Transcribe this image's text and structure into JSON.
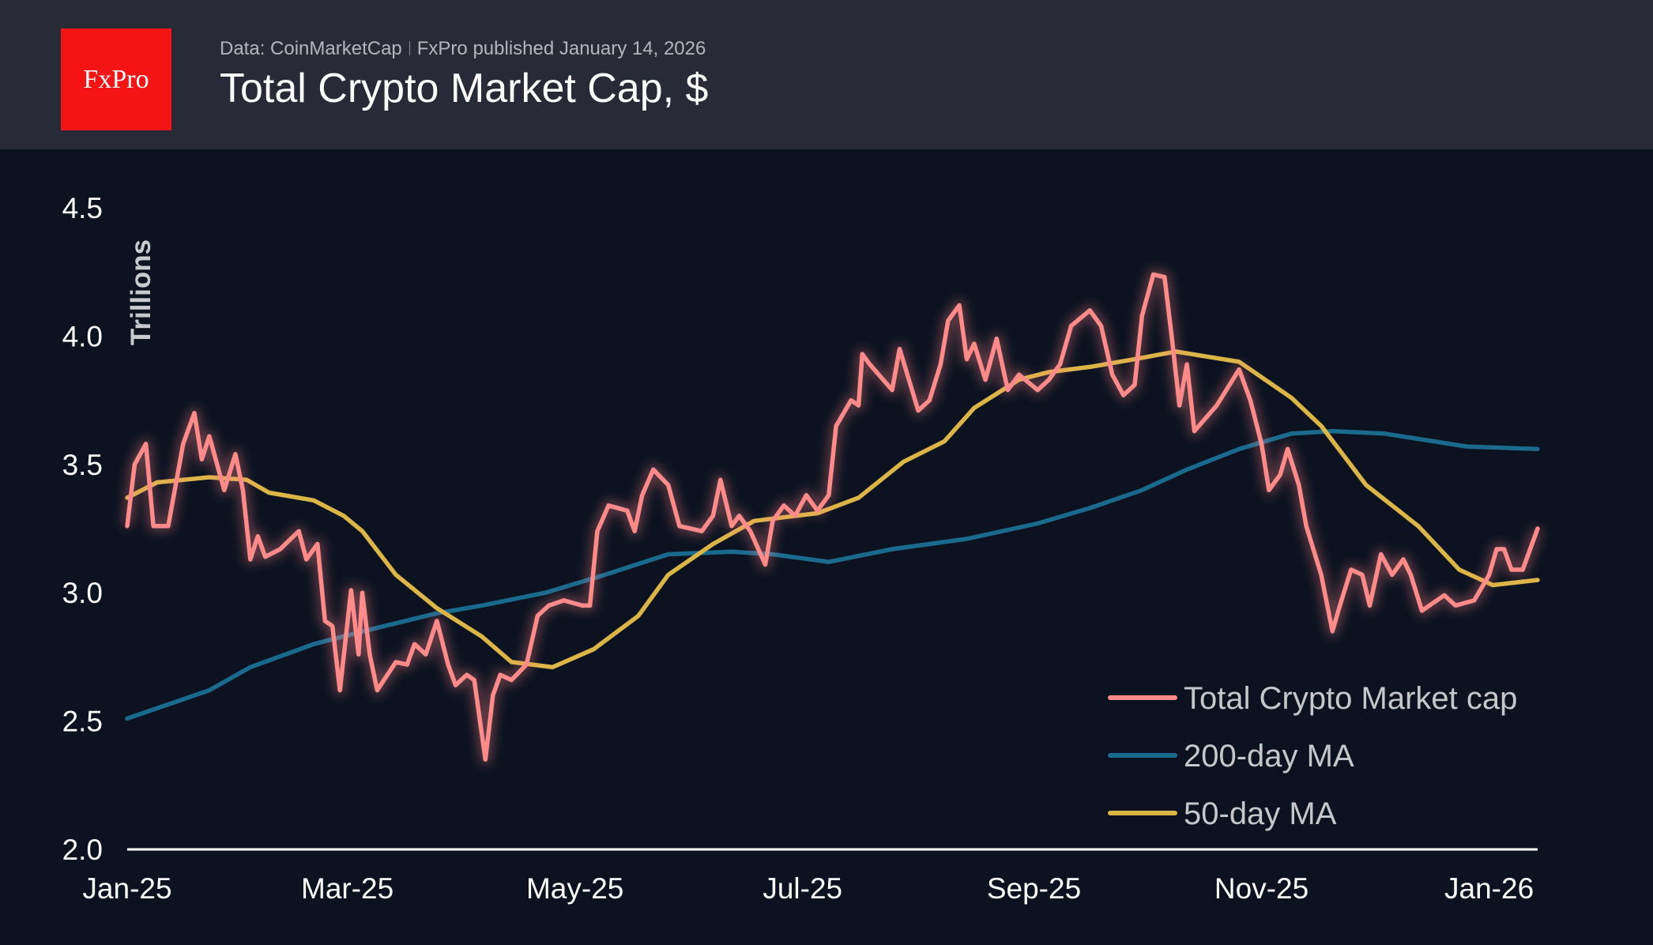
{
  "header": {
    "logo_text": "FxPro",
    "source": "Data: CoinMarketCap",
    "published": "FxPro published January 14, 2026",
    "title": "Total Crypto Market Cap, $"
  },
  "chart_data": {
    "type": "line",
    "title": "Total Crypto Market Cap, $",
    "ylabel": "Trillions",
    "xlabel": "",
    "ylim": [
      2.0,
      4.5
    ],
    "xlim": [
      "2025-01-01",
      "2026-01-14"
    ],
    "yticks": [
      "2.0",
      "2.5",
      "3.0",
      "3.5",
      "4.0",
      "4.5"
    ],
    "xticks": [
      {
        "label": "Jan-25",
        "date": "2025-01-01"
      },
      {
        "label": "Mar-25",
        "date": "2025-03-01"
      },
      {
        "label": "May-25",
        "date": "2025-05-01"
      },
      {
        "label": "Jul-25",
        "date": "2025-07-01"
      },
      {
        "label": "Sep-25",
        "date": "2025-09-01"
      },
      {
        "label": "Nov-25",
        "date": "2025-11-01"
      },
      {
        "label": "Jan-26",
        "date": "2026-01-01"
      }
    ],
    "grid": false,
    "legend_position": "bottom-right",
    "series": [
      {
        "name": "Total Crypto Market cap",
        "color": "#ff8a8a",
        "glow": true,
        "points": [
          [
            "2025-01-01",
            3.26
          ],
          [
            "2025-01-03",
            3.5
          ],
          [
            "2025-01-06",
            3.58
          ],
          [
            "2025-01-08",
            3.26
          ],
          [
            "2025-01-12",
            3.26
          ],
          [
            "2025-01-16",
            3.58
          ],
          [
            "2025-01-19",
            3.7
          ],
          [
            "2025-01-21",
            3.52
          ],
          [
            "2025-01-23",
            3.61
          ],
          [
            "2025-01-27",
            3.4
          ],
          [
            "2025-01-30",
            3.54
          ],
          [
            "2025-02-01",
            3.4
          ],
          [
            "2025-02-03",
            3.13
          ],
          [
            "2025-02-05",
            3.22
          ],
          [
            "2025-02-07",
            3.14
          ],
          [
            "2025-02-11",
            3.17
          ],
          [
            "2025-02-16",
            3.24
          ],
          [
            "2025-02-18",
            3.13
          ],
          [
            "2025-02-21",
            3.19
          ],
          [
            "2025-02-23",
            2.89
          ],
          [
            "2025-02-25",
            2.87
          ],
          [
            "2025-02-27",
            2.62
          ],
          [
            "2025-03-02",
            3.01
          ],
          [
            "2025-03-04",
            2.76
          ],
          [
            "2025-03-05",
            3.0
          ],
          [
            "2025-03-07",
            2.76
          ],
          [
            "2025-03-09",
            2.62
          ],
          [
            "2025-03-14",
            2.73
          ],
          [
            "2025-03-17",
            2.72
          ],
          [
            "2025-03-19",
            2.8
          ],
          [
            "2025-03-22",
            2.76
          ],
          [
            "2025-03-25",
            2.89
          ],
          [
            "2025-03-28",
            2.72
          ],
          [
            "2025-03-30",
            2.64
          ],
          [
            "2025-04-02",
            2.68
          ],
          [
            "2025-04-04",
            2.66
          ],
          [
            "2025-04-07",
            2.35
          ],
          [
            "2025-04-09",
            2.6
          ],
          [
            "2025-04-11",
            2.68
          ],
          [
            "2025-04-14",
            2.66
          ],
          [
            "2025-04-18",
            2.72
          ],
          [
            "2025-04-21",
            2.91
          ],
          [
            "2025-04-24",
            2.95
          ],
          [
            "2025-04-28",
            2.97
          ],
          [
            "2025-05-03",
            2.95
          ],
          [
            "2025-05-05",
            2.95
          ],
          [
            "2025-05-07",
            3.24
          ],
          [
            "2025-05-10",
            3.34
          ],
          [
            "2025-05-15",
            3.32
          ],
          [
            "2025-05-17",
            3.24
          ],
          [
            "2025-05-19",
            3.38
          ],
          [
            "2025-05-22",
            3.48
          ],
          [
            "2025-05-26",
            3.42
          ],
          [
            "2025-05-29",
            3.26
          ],
          [
            "2025-06-04",
            3.24
          ],
          [
            "2025-06-07",
            3.3
          ],
          [
            "2025-06-09",
            3.44
          ],
          [
            "2025-06-12",
            3.26
          ],
          [
            "2025-06-14",
            3.3
          ],
          [
            "2025-06-17",
            3.24
          ],
          [
            "2025-06-21",
            3.11
          ],
          [
            "2025-06-23",
            3.28
          ],
          [
            "2025-06-26",
            3.34
          ],
          [
            "2025-06-29",
            3.3
          ],
          [
            "2025-07-02",
            3.38
          ],
          [
            "2025-07-05",
            3.32
          ],
          [
            "2025-07-08",
            3.38
          ],
          [
            "2025-07-10",
            3.65
          ],
          [
            "2025-07-14",
            3.75
          ],
          [
            "2025-07-16",
            3.73
          ],
          [
            "2025-07-17",
            3.93
          ],
          [
            "2025-07-19",
            3.89
          ],
          [
            "2025-07-25",
            3.79
          ],
          [
            "2025-07-27",
            3.95
          ],
          [
            "2025-08-01",
            3.71
          ],
          [
            "2025-08-04",
            3.75
          ],
          [
            "2025-08-07",
            3.89
          ],
          [
            "2025-08-09",
            4.06
          ],
          [
            "2025-08-12",
            4.12
          ],
          [
            "2025-08-14",
            3.91
          ],
          [
            "2025-08-16",
            3.97
          ],
          [
            "2025-08-19",
            3.83
          ],
          [
            "2025-08-22",
            3.99
          ],
          [
            "2025-08-25",
            3.79
          ],
          [
            "2025-08-28",
            3.85
          ],
          [
            "2025-09-02",
            3.79
          ],
          [
            "2025-09-05",
            3.83
          ],
          [
            "2025-09-08",
            3.89
          ],
          [
            "2025-09-11",
            4.04
          ],
          [
            "2025-09-16",
            4.1
          ],
          [
            "2025-09-19",
            4.04
          ],
          [
            "2025-09-22",
            3.85
          ],
          [
            "2025-09-25",
            3.77
          ],
          [
            "2025-09-28",
            3.81
          ],
          [
            "2025-09-30",
            4.08
          ],
          [
            "2025-10-03",
            4.24
          ],
          [
            "2025-10-06",
            4.23
          ],
          [
            "2025-10-08",
            3.99
          ],
          [
            "2025-10-10",
            3.73
          ],
          [
            "2025-10-12",
            3.89
          ],
          [
            "2025-10-14",
            3.63
          ],
          [
            "2025-10-20",
            3.73
          ],
          [
            "2025-10-26",
            3.87
          ],
          [
            "2025-10-29",
            3.75
          ],
          [
            "2025-11-01",
            3.58
          ],
          [
            "2025-11-03",
            3.4
          ],
          [
            "2025-11-06",
            3.46
          ],
          [
            "2025-11-08",
            3.56
          ],
          [
            "2025-11-11",
            3.42
          ],
          [
            "2025-11-13",
            3.26
          ],
          [
            "2025-11-17",
            3.07
          ],
          [
            "2025-11-20",
            2.85
          ],
          [
            "2025-11-22",
            2.95
          ],
          [
            "2025-11-25",
            3.09
          ],
          [
            "2025-11-28",
            3.07
          ],
          [
            "2025-11-30",
            2.95
          ],
          [
            "2025-12-03",
            3.15
          ],
          [
            "2025-12-06",
            3.07
          ],
          [
            "2025-12-09",
            3.13
          ],
          [
            "2025-12-11",
            3.07
          ],
          [
            "2025-12-14",
            2.93
          ],
          [
            "2025-12-20",
            2.99
          ],
          [
            "2025-12-23",
            2.95
          ],
          [
            "2025-12-28",
            2.97
          ],
          [
            "2026-01-01",
            3.07
          ],
          [
            "2026-01-03",
            3.17
          ],
          [
            "2026-01-05",
            3.17
          ],
          [
            "2026-01-07",
            3.09
          ],
          [
            "2026-01-10",
            3.09
          ],
          [
            "2026-01-14",
            3.25
          ]
        ]
      },
      {
        "name": "200-day MA",
        "color": "#1a6a8e",
        "points": [
          [
            "2025-01-01",
            2.51
          ],
          [
            "2025-01-23",
            2.62
          ],
          [
            "2025-02-03",
            2.71
          ],
          [
            "2025-02-20",
            2.8
          ],
          [
            "2025-03-08",
            2.86
          ],
          [
            "2025-03-25",
            2.92
          ],
          [
            "2025-04-06",
            2.95
          ],
          [
            "2025-04-23",
            3.0
          ],
          [
            "2025-05-09",
            3.07
          ],
          [
            "2025-05-26",
            3.15
          ],
          [
            "2025-06-12",
            3.16
          ],
          [
            "2025-06-23",
            3.15
          ],
          [
            "2025-07-08",
            3.12
          ],
          [
            "2025-07-25",
            3.17
          ],
          [
            "2025-08-14",
            3.21
          ],
          [
            "2025-09-02",
            3.27
          ],
          [
            "2025-09-16",
            3.33
          ],
          [
            "2025-09-30",
            3.4
          ],
          [
            "2025-10-12",
            3.48
          ],
          [
            "2025-10-26",
            3.56
          ],
          [
            "2025-11-09",
            3.62
          ],
          [
            "2025-11-20",
            3.63
          ],
          [
            "2025-12-04",
            3.62
          ],
          [
            "2025-12-26",
            3.57
          ],
          [
            "2026-01-14",
            3.56
          ]
        ]
      },
      {
        "name": "50-day MA",
        "color": "#dcb547",
        "points": [
          [
            "2025-01-01",
            3.37
          ],
          [
            "2025-01-09",
            3.43
          ],
          [
            "2025-01-23",
            3.45
          ],
          [
            "2025-02-02",
            3.44
          ],
          [
            "2025-02-08",
            3.39
          ],
          [
            "2025-02-20",
            3.36
          ],
          [
            "2025-02-28",
            3.3
          ],
          [
            "2025-03-05",
            3.24
          ],
          [
            "2025-03-14",
            3.07
          ],
          [
            "2025-03-25",
            2.94
          ],
          [
            "2025-04-06",
            2.83
          ],
          [
            "2025-04-14",
            2.73
          ],
          [
            "2025-04-25",
            2.71
          ],
          [
            "2025-05-06",
            2.78
          ],
          [
            "2025-05-18",
            2.91
          ],
          [
            "2025-05-26",
            3.07
          ],
          [
            "2025-06-07",
            3.19
          ],
          [
            "2025-06-18",
            3.28
          ],
          [
            "2025-07-05",
            3.31
          ],
          [
            "2025-07-16",
            3.37
          ],
          [
            "2025-07-28",
            3.51
          ],
          [
            "2025-08-08",
            3.59
          ],
          [
            "2025-08-16",
            3.72
          ],
          [
            "2025-08-28",
            3.83
          ],
          [
            "2025-09-05",
            3.86
          ],
          [
            "2025-09-16",
            3.88
          ],
          [
            "2025-09-28",
            3.91
          ],
          [
            "2025-10-09",
            3.94
          ],
          [
            "2025-10-26",
            3.9
          ],
          [
            "2025-11-09",
            3.76
          ],
          [
            "2025-11-17",
            3.65
          ],
          [
            "2025-11-29",
            3.42
          ],
          [
            "2025-12-13",
            3.26
          ],
          [
            "2025-12-24",
            3.09
          ],
          [
            "2026-01-02",
            3.03
          ],
          [
            "2026-01-14",
            3.05
          ]
        ]
      }
    ]
  },
  "colors": {
    "background": "#0c1220",
    "header": "#282b37",
    "logo": "#f51414"
  }
}
